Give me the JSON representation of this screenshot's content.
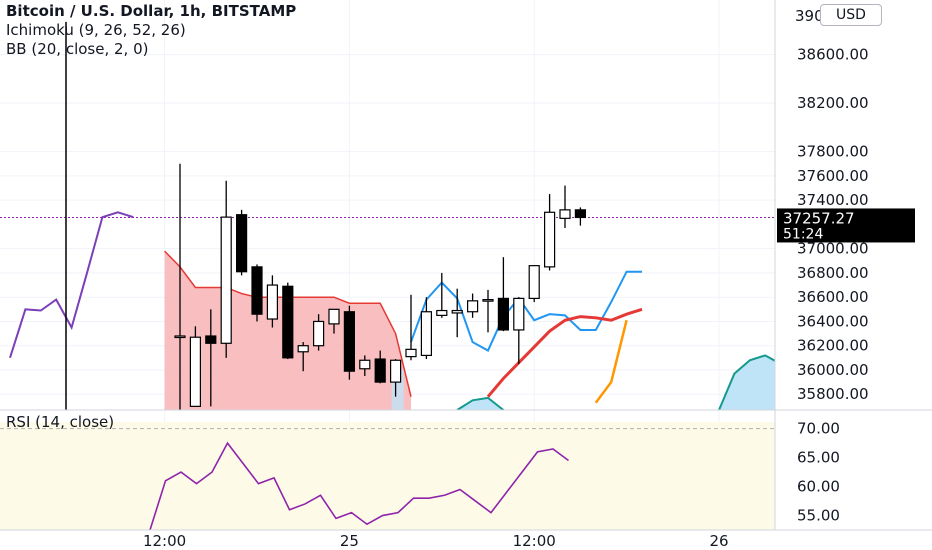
{
  "legend": {
    "title": "Bitcoin / U.S. Dollar, 1h, BITSTAMP",
    "ichimoku": "Ichimoku (9, 26, 52, 26)",
    "bb": "BB (20, close, 2, 0)"
  },
  "currency_button": "USD",
  "rsi_label": "RSI (14, close)",
  "price_axis": {
    "ticks": [
      "38600.00",
      "38200.00",
      "37800.00",
      "37600.00",
      "37400.00",
      "37000.00",
      "36800.00",
      "36600.00",
      "36400.00",
      "36200.00",
      "36000.00",
      "35800.00"
    ],
    "tick_values": [
      38600,
      38200,
      37800,
      37600,
      37400,
      37000,
      36800,
      36600,
      36400,
      36200,
      36000,
      35800
    ],
    "top_partial_label": "39000.00",
    "current_price": "37257.27",
    "countdown": "51:24"
  },
  "rsi_axis": {
    "ticks": [
      "70.00",
      "65.00",
      "60.00",
      "55.00"
    ],
    "tick_values": [
      70,
      65,
      60,
      55
    ]
  },
  "time_axis": {
    "labels": [
      "12:00",
      "25",
      "12:00",
      "26"
    ]
  },
  "colors": {
    "up_candle": "#ffffff",
    "down_candle": "#000000",
    "tenkan": "#2196f3",
    "kijun": "#e53935",
    "lagging": "#7b3fb8",
    "kumo_bear": "#f7b3b5",
    "kumo_bull": "#bfe3f7",
    "span_b_bull": "#139a8c",
    "bb_basis": "#ff9800",
    "rsi_line": "#8e24aa",
    "rsi_band": "#fdfbe8"
  },
  "chart_data": {
    "type": "candlestick",
    "title": "Bitcoin / U.S. Dollar, 1h, BITSTAMP",
    "ylim": [
      35670,
      39050
    ],
    "candles": [
      {
        "o": 36280,
        "h": 37700,
        "l": 34500,
        "c": 36280
      },
      {
        "o": 35700,
        "h": 36360,
        "l": 35700,
        "c": 36270
      },
      {
        "o": 36280,
        "h": 36500,
        "l": 35700,
        "c": 36220
      },
      {
        "o": 36220,
        "h": 37560,
        "l": 36100,
        "c": 37260
      },
      {
        "o": 37280,
        "h": 37320,
        "l": 36780,
        "c": 36810
      },
      {
        "o": 36850,
        "h": 36870,
        "l": 36400,
        "c": 36460
      },
      {
        "o": 36420,
        "h": 36780,
        "l": 36350,
        "c": 36700
      },
      {
        "o": 36690,
        "h": 36720,
        "l": 36090,
        "c": 36100
      },
      {
        "o": 36150,
        "h": 36230,
        "l": 35990,
        "c": 36200
      },
      {
        "o": 36200,
        "h": 36460,
        "l": 36160,
        "c": 36400
      },
      {
        "o": 36380,
        "h": 36480,
        "l": 36300,
        "c": 36500
      },
      {
        "o": 36480,
        "h": 36530,
        "l": 35920,
        "c": 35990
      },
      {
        "o": 36010,
        "h": 36120,
        "l": 35950,
        "c": 36080
      },
      {
        "o": 36090,
        "h": 36160,
        "l": 35890,
        "c": 35900
      },
      {
        "o": 35900,
        "h": 36090,
        "l": 35780,
        "c": 36080
      },
      {
        "o": 36110,
        "h": 36620,
        "l": 36080,
        "c": 36170
      },
      {
        "o": 36120,
        "h": 36600,
        "l": 36090,
        "c": 36480
      },
      {
        "o": 36450,
        "h": 36800,
        "l": 36430,
        "c": 36490
      },
      {
        "o": 36470,
        "h": 36670,
        "l": 36270,
        "c": 36490
      },
      {
        "o": 36480,
        "h": 36630,
        "l": 36430,
        "c": 36570
      },
      {
        "o": 36570,
        "h": 36660,
        "l": 36310,
        "c": 36580
      },
      {
        "o": 36590,
        "h": 36930,
        "l": 36320,
        "c": 36330
      },
      {
        "o": 36330,
        "h": 36600,
        "l": 36050,
        "c": 36590
      },
      {
        "o": 36590,
        "h": 36860,
        "l": 36560,
        "c": 36860
      },
      {
        "o": 36850,
        "h": 37450,
        "l": 36820,
        "c": 37300
      },
      {
        "o": 37250,
        "h": 37520,
        "l": 37170,
        "c": 37320
      },
      {
        "o": 37320,
        "h": 37340,
        "l": 37190,
        "c": 37257.27
      }
    ],
    "tenkan": [
      [
        15,
        36230
      ],
      [
        16,
        36580
      ],
      [
        17,
        36720
      ],
      [
        18,
        36590
      ],
      [
        19,
        36230
      ],
      [
        20,
        36160
      ],
      [
        21,
        36440
      ],
      [
        22,
        36590
      ],
      [
        23,
        36410
      ],
      [
        24,
        36460
      ],
      [
        25,
        36450
      ],
      [
        26,
        36330
      ],
      [
        27,
        36330
      ],
      [
        28,
        36560
      ],
      [
        29,
        36810
      ],
      [
        30,
        36810
      ]
    ],
    "kijun": [
      [
        20,
        35780
      ],
      [
        21,
        35930
      ],
      [
        22,
        36060
      ],
      [
        23,
        36190
      ],
      [
        24,
        36320
      ],
      [
        25,
        36410
      ],
      [
        26,
        36440
      ],
      [
        27,
        36430
      ],
      [
        28,
        36410
      ],
      [
        29,
        36460
      ],
      [
        30,
        36500
      ]
    ],
    "bb_basis": [
      [
        27,
        35730
      ],
      [
        28,
        35900
      ],
      [
        29,
        36410
      ]
    ],
    "lagging": [
      [
        0,
        36100
      ],
      [
        1,
        36500
      ],
      [
        2,
        36490
      ],
      [
        3,
        36580
      ],
      [
        4,
        36350
      ],
      [
        5,
        36800
      ],
      [
        6,
        37260
      ],
      [
        7,
        37300
      ],
      [
        8,
        37260
      ]
    ],
    "kumo_bear": {
      "span_a": [
        [
          -1,
          36980
        ],
        [
          0,
          36850
        ],
        [
          1,
          36680
        ],
        [
          2,
          36680
        ],
        [
          3,
          36680
        ],
        [
          4,
          36630
        ],
        [
          5,
          36600
        ],
        [
          6,
          36600
        ],
        [
          7,
          36600
        ],
        [
          8,
          36600
        ],
        [
          9,
          36600
        ],
        [
          10,
          36600
        ],
        [
          11,
          36550
        ],
        [
          12,
          36550
        ],
        [
          13,
          36550
        ],
        [
          14,
          36300
        ],
        [
          15,
          35780
        ]
      ],
      "span_b": [
        [
          -1,
          36680
        ],
        [
          0,
          36680
        ],
        [
          1,
          36680
        ],
        [
          2,
          36680
        ],
        [
          3,
          36680
        ],
        [
          4,
          36630
        ],
        [
          5,
          36600
        ],
        [
          6,
          36600
        ],
        [
          7,
          36600
        ],
        [
          8,
          36600
        ],
        [
          9,
          36600
        ],
        [
          10,
          36500
        ],
        [
          11,
          36400
        ],
        [
          12,
          36390
        ],
        [
          13,
          36380
        ],
        [
          14,
          36230
        ],
        [
          15,
          35780
        ]
      ]
    },
    "kumo_bull_small": {
      "upper": [
        [
          18,
          35670
        ],
        [
          19,
          35750
        ],
        [
          20,
          35770
        ],
        [
          21,
          35670
        ]
      ]
    },
    "kumo_bull_future": {
      "span_b": [
        [
          35,
          35670
        ],
        [
          36,
          35970
        ],
        [
          37,
          36080
        ],
        [
          38,
          36120
        ],
        [
          39,
          36050
        ],
        [
          40,
          35950
        ]
      ]
    },
    "rsi": {
      "ylim": [
        52.5,
        71.5
      ],
      "values": [
        [
          9,
          52.5
        ],
        [
          10,
          61
        ],
        [
          11,
          62.5
        ],
        [
          12,
          60.5
        ],
        [
          13,
          62.5
        ],
        [
          14,
          67.5
        ],
        [
          15,
          64
        ],
        [
          16,
          60.5
        ],
        [
          17,
          61.5
        ],
        [
          18,
          56
        ],
        [
          19,
          57
        ],
        [
          20,
          58.5
        ],
        [
          21,
          54.5
        ],
        [
          22,
          55.5
        ],
        [
          23,
          53.5
        ],
        [
          24,
          55
        ],
        [
          25,
          55.5
        ],
        [
          26,
          58
        ],
        [
          27,
          58
        ],
        [
          28,
          58.5
        ],
        [
          29,
          59.5
        ],
        [
          30,
          57.5
        ],
        [
          31,
          55.5
        ],
        [
          32,
          59
        ],
        [
          33,
          62.5
        ],
        [
          34,
          66
        ],
        [
          35,
          66.5
        ],
        [
          36,
          64.5
        ]
      ]
    },
    "time_labels": [
      {
        "label": "12:00",
        "index": -1
      },
      {
        "label": "25",
        "index": 11
      },
      {
        "label": "12:00",
        "index": 23
      },
      {
        "label": "26",
        "index": 35
      }
    ]
  }
}
